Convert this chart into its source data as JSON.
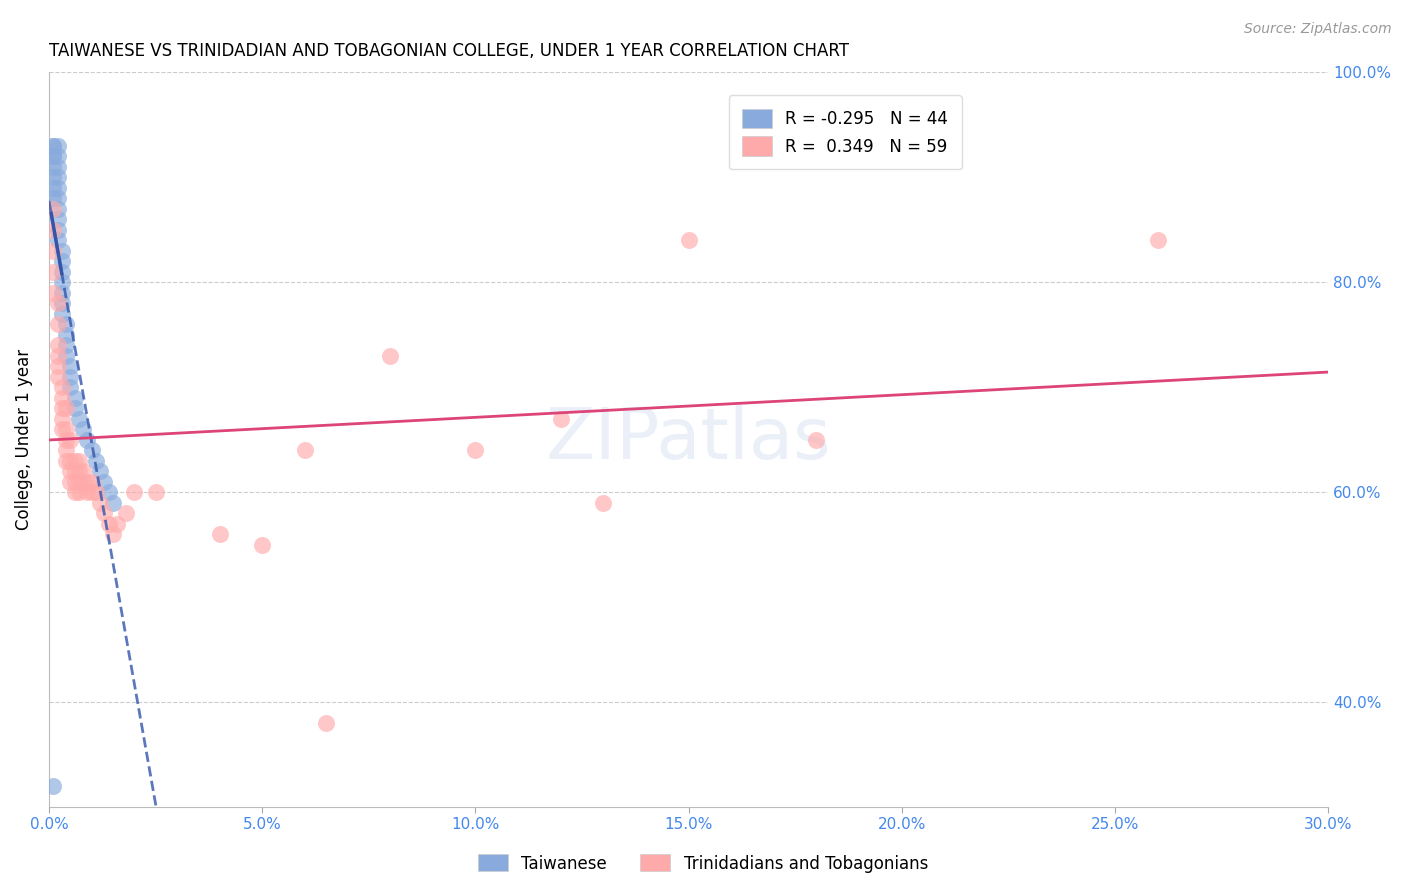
{
  "title": "TAIWANESE VS TRINIDADIAN AND TOBAGONIAN COLLEGE, UNDER 1 YEAR CORRELATION CHART",
  "source": "Source: ZipAtlas.com",
  "ylabel": "College, Under 1 year",
  "xlim": [
    0.0,
    0.3
  ],
  "ylim": [
    0.3,
    1.0
  ],
  "xticks": [
    0.0,
    0.05,
    0.1,
    0.15,
    0.2,
    0.25,
    0.3
  ],
  "yticks": [
    0.4,
    0.6,
    0.8,
    1.0
  ],
  "ytick_labels": [
    "40.0%",
    "60.0%",
    "80.0%",
    "100.0%"
  ],
  "xtick_labels": [
    "0.0%",
    "5.0%",
    "10.0%",
    "15.0%",
    "20.0%",
    "25.0%",
    "30.0%"
  ],
  "blue_color": "#88AADD",
  "pink_color": "#FFAAAA",
  "blue_line_color": "#3355AA",
  "pink_line_color": "#DD4477",
  "axis_color": "#4488EE",
  "grid_color": "#CCCCCC",
  "legend_r_blue": "-0.295",
  "legend_n_blue": "44",
  "legend_r_pink": "0.349",
  "legend_n_pink": "59",
  "blue_x": [
    0.001,
    0.001,
    0.001,
    0.001,
    0.001,
    0.001,
    0.001,
    0.001,
    0.002,
    0.002,
    0.002,
    0.002,
    0.002,
    0.002,
    0.002,
    0.002,
    0.002,
    0.002,
    0.003,
    0.003,
    0.003,
    0.003,
    0.003,
    0.003,
    0.003,
    0.004,
    0.004,
    0.004,
    0.004,
    0.005,
    0.005,
    0.005,
    0.006,
    0.006,
    0.007,
    0.008,
    0.009,
    0.01,
    0.011,
    0.012,
    0.013,
    0.014,
    0.015,
    0.001
  ],
  "blue_y": [
    0.93,
    0.93,
    0.92,
    0.92,
    0.91,
    0.9,
    0.89,
    0.88,
    0.93,
    0.92,
    0.91,
    0.9,
    0.89,
    0.88,
    0.87,
    0.86,
    0.85,
    0.84,
    0.83,
    0.82,
    0.81,
    0.8,
    0.79,
    0.78,
    0.77,
    0.76,
    0.75,
    0.74,
    0.73,
    0.72,
    0.71,
    0.7,
    0.69,
    0.68,
    0.67,
    0.66,
    0.65,
    0.64,
    0.63,
    0.62,
    0.61,
    0.6,
    0.59,
    0.32
  ],
  "pink_x": [
    0.001,
    0.001,
    0.001,
    0.001,
    0.001,
    0.002,
    0.002,
    0.002,
    0.002,
    0.002,
    0.002,
    0.003,
    0.003,
    0.003,
    0.003,
    0.003,
    0.004,
    0.004,
    0.004,
    0.004,
    0.004,
    0.005,
    0.005,
    0.005,
    0.005,
    0.006,
    0.006,
    0.006,
    0.006,
    0.007,
    0.007,
    0.007,
    0.007,
    0.008,
    0.008,
    0.009,
    0.009,
    0.01,
    0.01,
    0.011,
    0.012,
    0.013,
    0.014,
    0.015,
    0.016,
    0.018,
    0.02,
    0.025,
    0.04,
    0.05,
    0.06,
    0.065,
    0.08,
    0.1,
    0.12,
    0.13,
    0.15,
    0.18,
    0.26
  ],
  "pink_y": [
    0.87,
    0.85,
    0.83,
    0.81,
    0.79,
    0.78,
    0.76,
    0.74,
    0.73,
    0.72,
    0.71,
    0.7,
    0.69,
    0.68,
    0.67,
    0.66,
    0.68,
    0.66,
    0.65,
    0.64,
    0.63,
    0.65,
    0.63,
    0.62,
    0.61,
    0.63,
    0.62,
    0.61,
    0.6,
    0.63,
    0.62,
    0.61,
    0.6,
    0.62,
    0.61,
    0.61,
    0.6,
    0.61,
    0.6,
    0.6,
    0.59,
    0.58,
    0.57,
    0.56,
    0.57,
    0.58,
    0.6,
    0.6,
    0.56,
    0.55,
    0.64,
    0.38,
    0.73,
    0.64,
    0.67,
    0.59,
    0.84,
    0.65,
    0.84
  ]
}
